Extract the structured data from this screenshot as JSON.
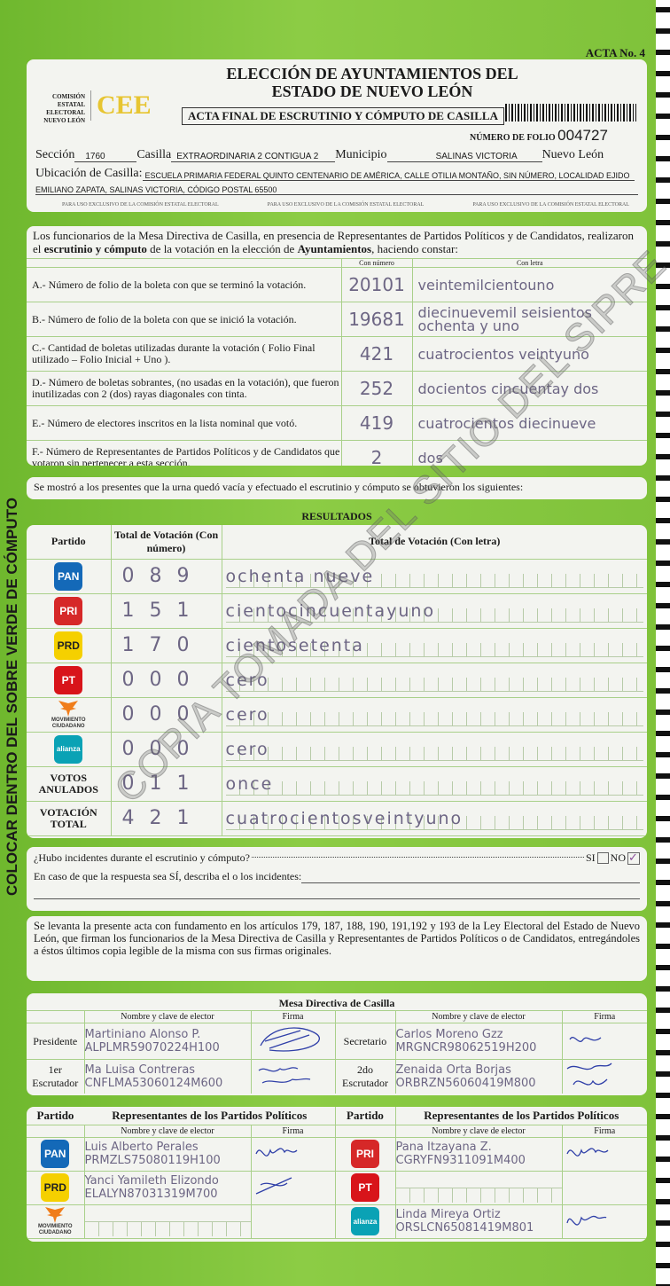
{
  "acta_no": "ACTA No. 4",
  "header": {
    "title_line1": "ELECCIÓN DE AYUNTAMIENTOS DEL",
    "title_line2": "ESTADO DE NUEVO LEÓN",
    "org_text": "COMISIÓN ESTATAL ELECTORAL NUEVO LEÓN",
    "logo_text": "CEE",
    "subtitle": "ACTA FINAL DE ESCRUTINIO Y CÓMPUTO DE CASILLA",
    "folio_label": "NÚMERO DE FOLIO",
    "folio": "004727",
    "seccion_label": "Sección",
    "seccion": "1760",
    "casilla_label": "Casilla",
    "casilla": "EXTRAORDINARIA 2 CONTIGUA 2",
    "municipio_label": "Municipio",
    "municipio": "SALINAS VICTORIA",
    "estado": "Nuevo León",
    "ubicacion_label": "Ubicación de Casilla:",
    "ubicacion_1": "ESCUELA PRIMARIA FEDERAL QUINTO CENTENARIO DE AMÉRICA, CALLE OTILIA MONTAÑO, SIN NÚMERO, LOCALIDAD EJIDO",
    "ubicacion_2": "EMILIANO ZAPATA, SALINAS VICTORIA, CÓDIGO POSTAL 65500",
    "exclusive": "PARA USO EXCLUSIVO DE LA COMISIÓN ESTATAL ELECTORAL"
  },
  "intro": {
    "text_1": "Los funcionarios de la Mesa Directiva de Casilla, en presencia de Representantes de Partidos Políticos y de Candidatos, realizaron el ",
    "bold_1": "escrutinio y cómputo",
    "text_2": " de la votación en la elección de ",
    "bold_2": "Ayuntamientos",
    "text_3": ", haciendo constar:",
    "col_num": "Con número",
    "col_letra": "Con letra",
    "rows": [
      {
        "label": "A.- Número de folio de la boleta con que se terminó la votación.",
        "numero": "20101",
        "letra": "veintemilcientouno"
      },
      {
        "label": "B.- Número de folio de la boleta con que se inició la votación.",
        "numero": "19681",
        "letra": "diecinuevemil seisientos ochenta y uno"
      },
      {
        "label": "C.- Cantidad de boletas utilizadas durante la votación ( Folio Final utilizado – Folio Inicial + Uno ).",
        "numero": "421",
        "letra": "cuatrocientos veintyuno"
      },
      {
        "label": "D.- Número de boletas sobrantes, (no usadas en la votación), que fueron inutilizadas con 2 (dos) rayas diagonales con tinta.",
        "numero": "252",
        "letra": "docientos cincuentay dos"
      },
      {
        "label": "E.- Número de electores inscritos en la lista nominal que votó.",
        "numero": "419",
        "letra": "cuatrocientos diecinueve"
      },
      {
        "label": "F.- Número de Representantes de Partidos Políticos y de Candidatos que votaron sin pertenecer a esta sección.",
        "numero": "2",
        "letra": "dos"
      }
    ]
  },
  "urna_text": "Se mostró a los presentes que la urna quedó vacía y efectuado el escrutinio y cómputo se obtuvieron los siguientes:",
  "results": {
    "title": "RESULTADOS",
    "col_partido": "Partido",
    "col_num": "Total de Votación (Con número)",
    "col_letra": "Total de Votación (Con letra)",
    "rows": [
      {
        "party": "PAN",
        "color": "#1469b8",
        "numero": "089",
        "letra": "ochenta nueve"
      },
      {
        "party": "PRI-PVEM",
        "color": "#d62828",
        "numero": "151",
        "letra": "cientocincuentayuno"
      },
      {
        "party": "PRD",
        "color": "#f5d000",
        "numero": "170",
        "letra": "cientosetenta"
      },
      {
        "party": "PT",
        "color": "#d8141a",
        "numero": "000",
        "letra": "cero"
      },
      {
        "party": "MOVIMIENTO CIUDADANO",
        "color": "#f07d1a",
        "numero": "000",
        "letra": "cero"
      },
      {
        "party": "alianza",
        "color": "#0aa2b5",
        "numero": "000",
        "letra": "cero"
      },
      {
        "party": "VOTOS ANULADOS",
        "numero": "011",
        "letra": "once"
      },
      {
        "party": "VOTACIÓN TOTAL",
        "numero": "421",
        "letra": "cuatrocientosveintyuno"
      }
    ]
  },
  "incidents": {
    "question": "¿Hubo incidentes durante el escrutinio y cómputo?",
    "si": "SI",
    "no": "NO",
    "answer": "NO",
    "describe": "En caso de que la respuesta sea SÍ, describa el o los incidentes:"
  },
  "legal": "Se levanta la presente acta con fundamento en los artículos 179, 187, 188, 190, 191,192 y 193 de la Ley Electoral del Estado de Nuevo León, que firman los funcionarios de la Mesa Directiva de Casilla y Representantes de Partidos Políticos o de Candidatos, entregándoles a éstos últimos copia legible de la misma con sus firmas originales.",
  "mesa": {
    "title": "Mesa Directiva de Casilla",
    "col_nombre": "Nombre y clave de elector",
    "col_firma": "Firma",
    "presidente": {
      "role": "Presidente",
      "name": "Martiniano Alonso P.",
      "clave": "ALPLMR59070224H100"
    },
    "secretario": {
      "role": "Secretario",
      "name": "Carlos Moreno Gzz",
      "clave": "MRGNCR98062519H200"
    },
    "escrutador1": {
      "role": "1er Escrutador",
      "name": "Ma Luisa Contreras",
      "clave": "CNFLMA53060124M600"
    },
    "escrutador2": {
      "role": "2do Escrutador",
      "name": "Zenaida Orta Borjas",
      "clave": "ORBRZN56060419M800"
    }
  },
  "reps": {
    "col_partido": "Partido",
    "title": "Representantes de los Partidos Políticos",
    "col_nombre": "Nombre y clave de elector",
    "col_firma": "Firma",
    "left": [
      {
        "party": "PAN",
        "color": "#1469b8",
        "name": "Luis Alberto Perales",
        "clave": "PRMZLS75080119H100"
      },
      {
        "party": "PRD",
        "color": "#f5d000",
        "name": "Yanci Yamileth Elizondo",
        "clave": "ELALYN87031319M700"
      },
      {
        "party": "MOVIMIENTO CIUDADANO",
        "color": "#f07d1a",
        "name": "",
        "clave": ""
      }
    ],
    "right": [
      {
        "party": "PRI-PVEM",
        "color": "#d62828",
        "name": "Pana Itzayana Z.",
        "clave": "CGRYFN9311091M400"
      },
      {
        "party": "PT",
        "color": "#d8141a",
        "name": "",
        "clave": ""
      },
      {
        "party": "alianza",
        "color": "#0aa2b5",
        "name": "Linda Mireya Ortiz",
        "clave": "ORSLCN65081419M801"
      }
    ]
  },
  "side_text": "COLOCAR DENTRO DEL SOBRE VERDE DE CÓMPUTO",
  "watermark": "COPIA TOMADA DEL SITIO DEL SIPRE"
}
